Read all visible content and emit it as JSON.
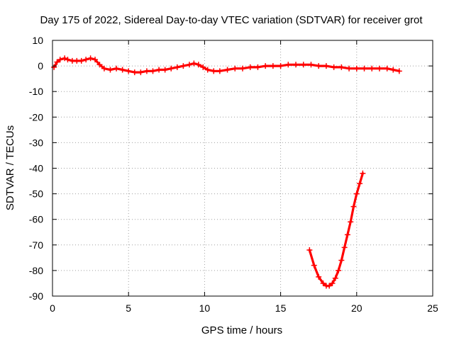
{
  "chart_data": {
    "type": "line",
    "title": "Day 175 of 2022, Sidereal Day-to-day VTEC variation (SDTVAR) for receiver grot",
    "xlabel": "GPS time / hours",
    "ylabel": "SDTVAR / TECUs",
    "xlim": [
      0,
      25
    ],
    "ylim": [
      -90,
      10
    ],
    "xticks": [
      "0",
      "5",
      "10",
      "15",
      "20",
      "25"
    ],
    "yticks": [
      "10",
      "0",
      "-10",
      "-20",
      "-30",
      "-40",
      "-50",
      "-60",
      "-70",
      "-80",
      "-90"
    ],
    "grid": true,
    "legend": "none",
    "series_color": "#ff0000",
    "series": [
      {
        "name": "",
        "x": [
          0.1,
          0.3,
          0.5,
          0.8,
          1.0,
          1.3,
          1.6,
          1.9,
          2.2,
          2.5,
          2.8,
          3.1,
          3.4,
          3.8,
          4.2,
          4.6,
          5.0,
          5.4,
          5.8,
          6.2,
          6.6,
          7.0,
          7.4,
          7.8,
          8.2,
          8.6,
          9.0,
          9.3,
          9.6,
          9.9,
          10.2,
          10.6,
          11.0,
          11.5,
          12.0,
          12.5,
          13.0,
          13.5,
          14.0,
          14.5,
          15.0,
          15.5,
          16.0,
          16.5,
          17.0,
          17.5,
          18.0,
          18.5,
          19.0,
          19.5,
          20.0,
          20.5,
          21.0,
          21.5,
          22.0,
          22.4,
          22.8
        ],
        "y": [
          -0.5,
          1.5,
          2.5,
          3.0,
          2.5,
          2.0,
          2.0,
          2.0,
          2.5,
          3.0,
          2.5,
          0.5,
          -1.0,
          -1.5,
          -1.0,
          -1.5,
          -2.0,
          -2.5,
          -2.5,
          -2.0,
          -2.0,
          -1.5,
          -1.5,
          -1.0,
          -0.5,
          0.0,
          0.5,
          1.0,
          0.5,
          -0.5,
          -1.5,
          -2.0,
          -2.0,
          -1.5,
          -1.0,
          -1.0,
          -0.5,
          -0.5,
          0.0,
          0.0,
          0.0,
          0.5,
          0.5,
          0.5,
          0.5,
          0.0,
          0.0,
          -0.5,
          -0.5,
          -1.0,
          -1.0,
          -1.0,
          -1.0,
          -1.0,
          -1.0,
          -1.5,
          -2.0
        ]
      },
      {
        "name": "",
        "x": [
          16.9,
          17.2,
          17.5,
          17.8,
          18.0,
          18.2,
          18.4,
          18.6,
          18.8,
          19.0,
          19.2,
          19.4,
          19.6,
          19.8,
          20.0,
          20.2,
          20.4
        ],
        "y": [
          -72.0,
          -78.0,
          -82.5,
          -85.0,
          -86.0,
          -86.0,
          -85.0,
          -83.0,
          -80.0,
          -76.0,
          -71.0,
          -66.0,
          -61.0,
          -55.0,
          -50.0,
          -46.0,
          -42.0
        ]
      }
    ]
  }
}
